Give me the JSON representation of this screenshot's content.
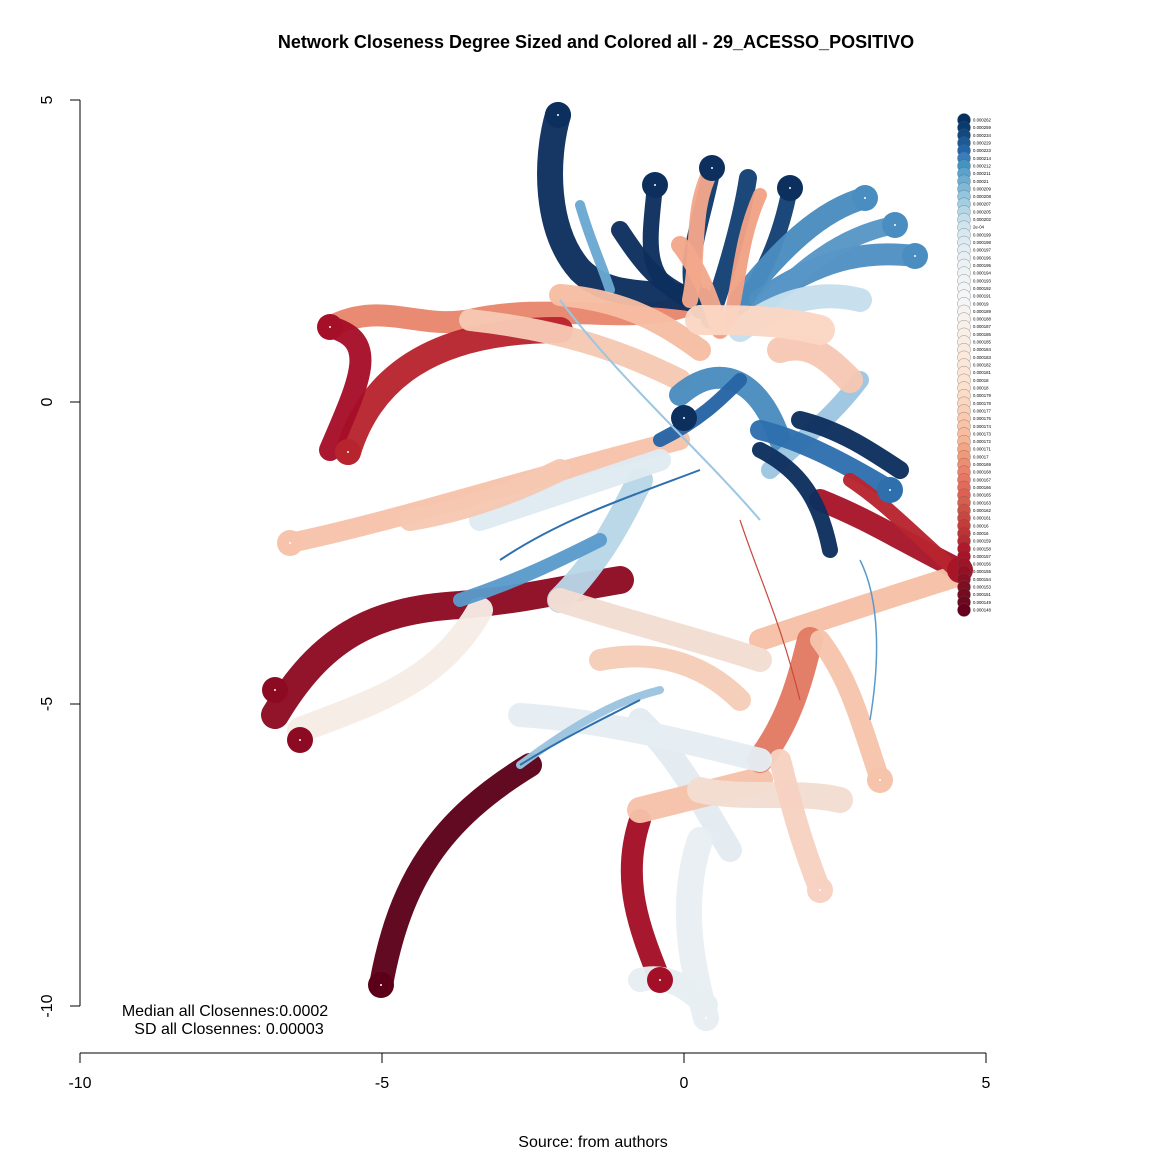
{
  "chart_data": {
    "type": "scatter",
    "title": "Network Closeness Degree Sized and Colored all - 29_ACESSO_POSITIVO",
    "xlabel": "",
    "ylabel": "",
    "xlim": [
      -10,
      5
    ],
    "ylim": [
      -10,
      5
    ],
    "x_ticks": [
      -10,
      -5,
      0,
      5
    ],
    "y_ticks": [
      -10,
      -5,
      0,
      5
    ],
    "x_tick_labels": [
      "-10",
      "-5",
      "0",
      "5"
    ],
    "y_tick_labels": [
      "-10",
      "-5",
      "0",
      "5"
    ],
    "grid": false,
    "legend_position": "right",
    "annotations": {
      "median": "Median all Closennes:0.0002",
      "sd": "SD all Closennes: 0.00003"
    },
    "source": "Source: from authors",
    "legend": [
      {
        "label": "0.000262",
        "color": "#053061"
      },
      {
        "label": "0.000259",
        "color": "#0a3b70"
      },
      {
        "label": "0.000234",
        "color": "#124880"
      },
      {
        "label": "0.000229",
        "color": "#1b5a94"
      },
      {
        "label": "0.000223",
        "color": "#2166ac"
      },
      {
        "label": "0.000214",
        "color": "#3a7db8"
      },
      {
        "label": "0.000212",
        "color": "#4393c3"
      },
      {
        "label": "0.000211",
        "color": "#5aa1cc"
      },
      {
        "label": "0.00021",
        "color": "#6dadd2"
      },
      {
        "label": "0.000209",
        "color": "#7fb9d8"
      },
      {
        "label": "0.000208",
        "color": "#92c5de"
      },
      {
        "label": "0.000207",
        "color": "#a2cde3"
      },
      {
        "label": "0.000205",
        "color": "#b4d7e8"
      },
      {
        "label": "0.000202",
        "color": "#c3dfed"
      },
      {
        "label": "2e-04",
        "color": "#d1e5f0"
      },
      {
        "label": "0.000199",
        "color": "#d8e8f1"
      },
      {
        "label": "0.000198",
        "color": "#deebf2"
      },
      {
        "label": "0.000197",
        "color": "#e3edf3"
      },
      {
        "label": "0.000196",
        "color": "#e7eff4"
      },
      {
        "label": "0.000195",
        "color": "#ebf1f5"
      },
      {
        "label": "0.000194",
        "color": "#eef3f6"
      },
      {
        "label": "0.000193",
        "color": "#f0f4f6"
      },
      {
        "label": "0.000192",
        "color": "#f2f4f6"
      },
      {
        "label": "0.000191",
        "color": "#f4f5f6"
      },
      {
        "label": "0.00019",
        "color": "#f5f5f5"
      },
      {
        "label": "0.000189",
        "color": "#f6f3f1"
      },
      {
        "label": "0.000188",
        "color": "#f7f2ee"
      },
      {
        "label": "0.000187",
        "color": "#f8f0ea"
      },
      {
        "label": "0.000186",
        "color": "#f9efe7"
      },
      {
        "label": "0.000185",
        "color": "#f9ede4"
      },
      {
        "label": "0.000184",
        "color": "#faebe0"
      },
      {
        "label": "0.000183",
        "color": "#fbe9dd"
      },
      {
        "label": "0.000182",
        "color": "#fbe7d9"
      },
      {
        "label": "0.000181",
        "color": "#fce5d6"
      },
      {
        "label": "0.00018",
        "color": "#fce3d2"
      },
      {
        "label": "0.00018",
        "color": "#fde1cf"
      },
      {
        "label": "0.000179",
        "color": "#fddbc7"
      },
      {
        "label": "0.000178",
        "color": "#fcd6c0"
      },
      {
        "label": "0.000177",
        "color": "#fbd0b8"
      },
      {
        "label": "0.000176",
        "color": "#fac9b0"
      },
      {
        "label": "0.000174",
        "color": "#f9c3a8"
      },
      {
        "label": "0.000173",
        "color": "#f8bca0"
      },
      {
        "label": "0.000172",
        "color": "#f6b597"
      },
      {
        "label": "0.000171",
        "color": "#f4a582"
      },
      {
        "label": "0.00017",
        "color": "#f1997a"
      },
      {
        "label": "0.000169",
        "color": "#ee8d72"
      },
      {
        "label": "0.000168",
        "color": "#eb826b"
      },
      {
        "label": "0.000167",
        "color": "#e77663"
      },
      {
        "label": "0.000166",
        "color": "#e36b5c"
      },
      {
        "label": "0.000165",
        "color": "#de6054"
      },
      {
        "label": "0.000163",
        "color": "#d6604d"
      },
      {
        "label": "0.000162",
        "color": "#cf5247"
      },
      {
        "label": "0.000161",
        "color": "#c94741"
      },
      {
        "label": "0.00016",
        "color": "#c43c3c"
      },
      {
        "label": "0.00016",
        "color": "#be3336"
      },
      {
        "label": "0.000159",
        "color": "#b82b31"
      },
      {
        "label": "0.000158",
        "color": "#b2182b"
      },
      {
        "label": "0.000157",
        "color": "#a81529"
      },
      {
        "label": "0.000156",
        "color": "#9e1327"
      },
      {
        "label": "0.000155",
        "color": "#941125"
      },
      {
        "label": "0.000154",
        "color": "#8a0f23"
      },
      {
        "label": "0.000153",
        "color": "#800d21"
      },
      {
        "label": "0.000151",
        "color": "#760b1f"
      },
      {
        "label": "0.000149",
        "color": "#6c091d"
      },
      {
        "label": "0.000148",
        "color": "#67001f"
      }
    ]
  }
}
